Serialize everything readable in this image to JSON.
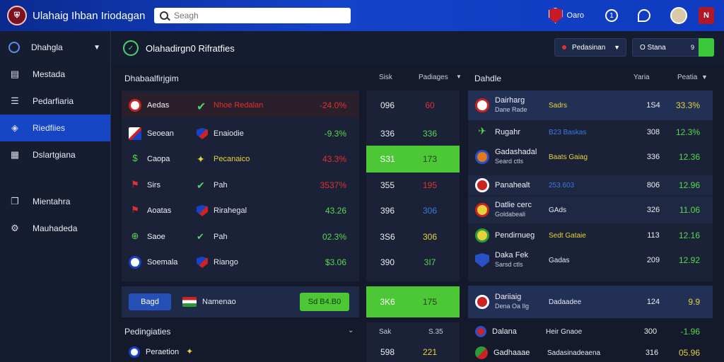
{
  "app": {
    "title": "Ulahaig Ihban Iriodagan"
  },
  "search": {
    "placeholder": "Seagh"
  },
  "topbar": {
    "user_label": "Oaro",
    "circle_label": "1",
    "badge_label": "N"
  },
  "sidebar": {
    "items": [
      {
        "label": "Dhahgla",
        "icon": "clock-icon",
        "active": false
      },
      {
        "label": "Mestada",
        "icon": "document-icon",
        "active": false
      },
      {
        "label": "Pedarfiaria",
        "icon": "list-icon",
        "active": false
      },
      {
        "label": "Riedfiies",
        "icon": "tag-icon",
        "active": true
      },
      {
        "label": "Dslartgiana",
        "icon": "table-icon",
        "active": false
      },
      {
        "label": "Mientahra",
        "icon": "cards-icon",
        "active": false
      },
      {
        "label": "Mauhadeda",
        "icon": "gear-icon",
        "active": false
      }
    ]
  },
  "header": {
    "title": "Olahadirgn0 Rifratfies",
    "drop1": "Pedasinan",
    "drop2": "O Stana",
    "drop2_icon": "9"
  },
  "left": {
    "title": "Dhabaalfirjgim",
    "col_a": "Sisk",
    "col_b": "Padiages",
    "rows": [
      {
        "n1": "Aedas",
        "n2": "Nhoe Redalan",
        "pct": "-24.0%",
        "a": "096",
        "b": "60"
      },
      {
        "n1": "Seoean",
        "n2": "Enaiodie",
        "pct": "-9.3%",
        "a": "336",
        "b": "336"
      },
      {
        "n1": "Caopa",
        "n2": "Pecanaico",
        "pct": "43.3%",
        "a": "S31",
        "b": "173"
      },
      {
        "n1": "Sirs",
        "n2": "Pah",
        "pct": "3537%",
        "a": "355",
        "b": "195"
      },
      {
        "n1": "Aoatas",
        "n2": "Rirahegal",
        "pct": "43.26",
        "a": "396",
        "b": "306"
      },
      {
        "n1": "Saoe",
        "n2": "Pah",
        "pct": "02.3%",
        "a": "3S6",
        "b": "306"
      },
      {
        "n1": "Soemala",
        "n2": "Riango",
        "pct": "$3.06",
        "a": "390",
        "b": "3I7"
      }
    ],
    "featured": {
      "tag": "Bagd",
      "name": "Namenao",
      "value": "Sd B4.B0",
      "a": "3K6",
      "b": "175"
    },
    "section2": "Pedingiaties",
    "sec2_a": "Sak",
    "sec2_b": "S.35",
    "sec2_row": {
      "name": "Peraetion",
      "a": "598",
      "b": "221"
    }
  },
  "right": {
    "title": "Dahdle",
    "col_a": "Yaria",
    "col_b": "Peatia",
    "rows": [
      {
        "name": "Dairharg",
        "sub": "Dane Rade",
        "label": "Sadrs",
        "v1": "1S4",
        "v2": "33.3%",
        "color": "yellow"
      },
      {
        "name": "Rugahr",
        "sub": "",
        "label": "B23 Baskas",
        "v1": "308",
        "v2": "12.3%",
        "color": "green"
      },
      {
        "name": "Gadashadal",
        "sub": "Seard ctls",
        "label": "Baats Gaiag",
        "v1": "336",
        "v2": "12.36",
        "color": "green"
      },
      {
        "name": "Panahealt",
        "sub": "",
        "label": "253.603",
        "v1": "806",
        "v2": "12.96",
        "color": "green"
      },
      {
        "name": "Datlie cerc",
        "sub": "Goldabeali",
        "label": "GAds",
        "v1": "326",
        "v2": "11.06",
        "color": "green"
      },
      {
        "name": "Pendirnueg",
        "sub": "",
        "label": "Sedt Gataie",
        "v1": "113",
        "v2": "12.16",
        "color": "green"
      },
      {
        "name": "Daka Fek",
        "sub": "Sarsd ctls",
        "label": "Gadas",
        "v1": "209",
        "v2": "12.92",
        "color": "green"
      },
      {
        "name": "Dariiaig",
        "sub": "Dena Oa Ilg",
        "label": "Dadaadee",
        "v1": "124",
        "v2": "9.9",
        "color": "yellow"
      },
      {
        "name": "Dalana",
        "sub": "",
        "label": "Heir Gnaoe",
        "v1": "300",
        "v2": "-1.96",
        "color": "green"
      },
      {
        "name": "Gadhaaae",
        "sub": "",
        "label": "Sadasinadeaena",
        "v1": "316",
        "v2": "05.96",
        "color": "yellow"
      }
    ]
  },
  "colors": {
    "accent": "#1646c4",
    "green": "#4cc836",
    "red": "#e03131",
    "panel": "#1b2238"
  }
}
